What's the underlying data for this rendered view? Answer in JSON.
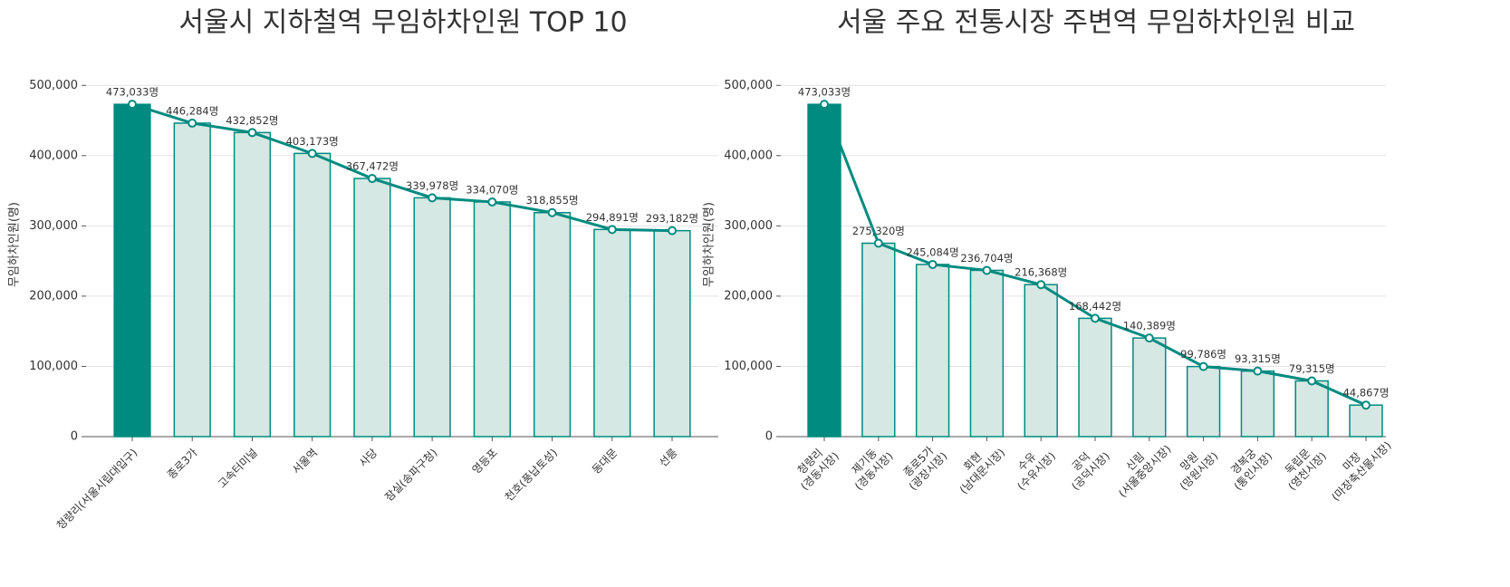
{
  "chart_data": [
    {
      "type": "combo",
      "title": "서울시 지하철역 무임하차인원 TOP 10",
      "ylabel": "무임하차인원(명)",
      "categories": [
        [
          "청량리(서울시립대입구)"
        ],
        [
          "종로3가"
        ],
        [
          "고속터미널"
        ],
        [
          "서울역"
        ],
        [
          "사당"
        ],
        [
          "잠실(송파구청)"
        ],
        [
          "영등포"
        ],
        [
          "천호(풍납토성)"
        ],
        [
          "동대문"
        ],
        [
          "선릉"
        ]
      ],
      "values": [
        473033,
        446284,
        432852,
        403173,
        367472,
        339978,
        334070,
        318855,
        294891,
        293182
      ],
      "value_labels": [
        "473,033명",
        "446,284명",
        "432,852명",
        "403,173명",
        "367,472명",
        "339,978명",
        "334,070명",
        "318,855명",
        "294,891명",
        "293,182명"
      ],
      "highlight_color": "#008b80",
      "bar_color": "#d5e8e3",
      "line_color": "#008b80",
      "ylim": [
        0,
        530000
      ],
      "yticks": [
        0,
        {
          "value": 100000,
          "label": "100,000"
        },
        {
          "value": 200000,
          "label": "200,000"
        },
        {
          "value": 300000,
          "label": "300,000"
        },
        {
          "value": 400000,
          "label": "400,000"
        },
        {
          "value": 500000,
          "label": "500,000"
        }
      ],
      "grid": true
    },
    {
      "type": "combo",
      "title": "서울 주요 전통시장 주변역 무임하차인원 비교",
      "ylabel": "무임하차인원(명)",
      "categories": [
        [
          "청량리",
          "(경동시장)"
        ],
        [
          "제기동",
          "(경동시장)"
        ],
        [
          "종로5가",
          "(광장시장)"
        ],
        [
          "회현",
          "(남대문시장)"
        ],
        [
          "수유",
          "(수유시장)"
        ],
        [
          "공덕",
          "(공덕시장)"
        ],
        [
          "신림",
          "(서울중앙시장)"
        ],
        [
          "망원",
          "(망원시장)"
        ],
        [
          "경복궁",
          "(통인시장)"
        ],
        [
          "독립문",
          "(영천시장)"
        ],
        [
          "마장",
          "(마장축산물시장)"
        ]
      ],
      "values": [
        473033,
        275320,
        245084,
        236704,
        216368,
        168442,
        140389,
        99786,
        93315,
        79315,
        44867
      ],
      "value_labels": [
        "473,033명",
        "275,320명",
        "245,084명",
        "236,704명",
        "216,368명",
        "168,442명",
        "140,389명",
        "99,786명",
        "93,315명",
        "79,315명",
        "44,867명"
      ],
      "highlight_color": "#008b80",
      "bar_color": "#d5e8e3",
      "line_color": "#008b80",
      "ylim": [
        0,
        530000
      ],
      "yticks": [
        0,
        {
          "value": 100000,
          "label": "100,000"
        },
        {
          "value": 200000,
          "label": "200,000"
        },
        {
          "value": 300000,
          "label": "300,000"
        },
        {
          "value": 400000,
          "label": "400,000"
        },
        {
          "value": 500000,
          "label": "500,000"
        }
      ],
      "grid": true
    }
  ]
}
